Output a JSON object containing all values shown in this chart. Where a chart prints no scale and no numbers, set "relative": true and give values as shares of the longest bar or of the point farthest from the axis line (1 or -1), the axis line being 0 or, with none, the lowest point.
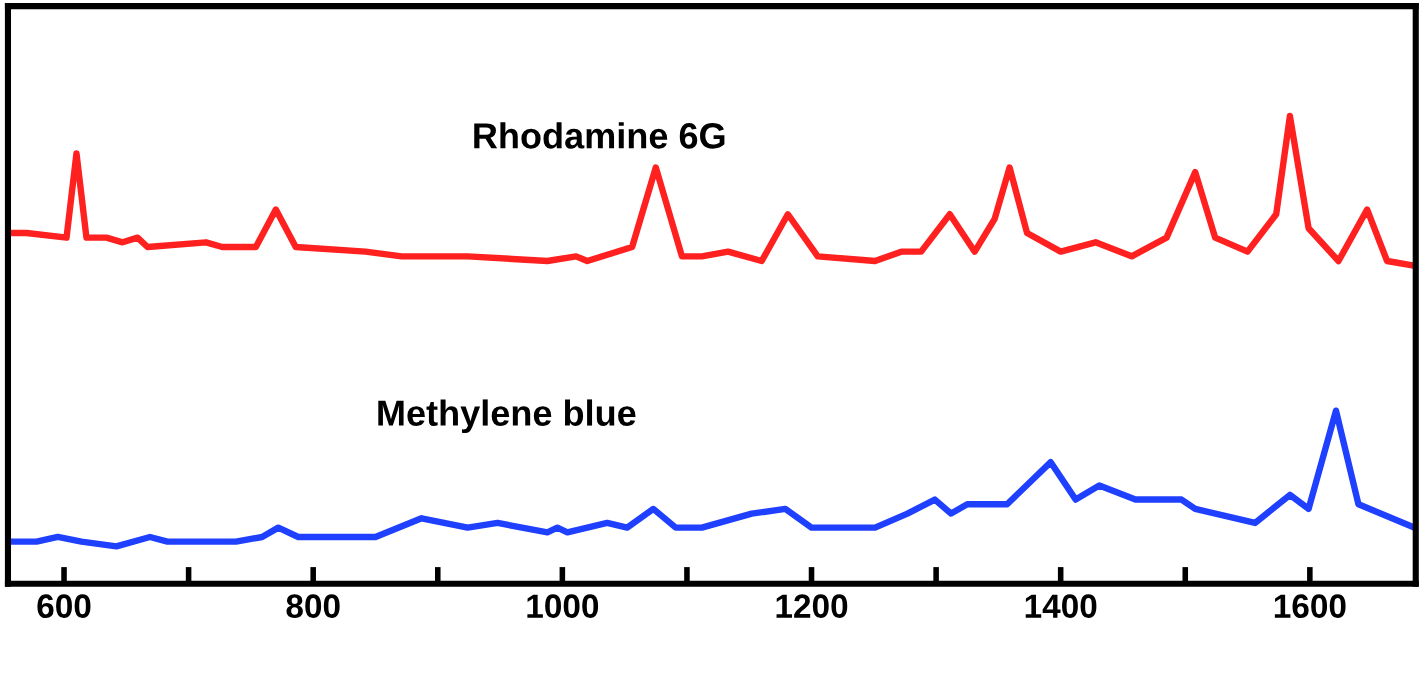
{
  "chart_data": {
    "type": "line",
    "relative": true,
    "grid": false,
    "legend": false,
    "marker": "none",
    "line_style": "solid",
    "tick_labels": "x",
    "xlim": [
      555,
      1685
    ],
    "xticks": [
      600,
      {
        "value": 700,
        "label": null
      },
      800,
      {
        "value": 900,
        "label": null
      },
      1000,
      {
        "value": 1100,
        "label": null
      },
      1200,
      {
        "value": 1300,
        "label": null
      },
      1400,
      {
        "value": 1500,
        "label": null
      },
      1600
    ],
    "series": [
      {
        "name": "Rhodamine 6G",
        "color": "#ff2020",
        "x": [
          557,
          570,
          602,
          610,
          618,
          634,
          647,
          659,
          667,
          714,
          727,
          754,
          770,
          786,
          842,
          871,
          924,
          988,
          1011,
          1020,
          1056,
          1075,
          1096,
          1112,
          1133,
          1160,
          1181,
          1205,
          1251,
          1272,
          1288,
          1311,
          1331,
          1347,
          1359,
          1373,
          1400,
          1428,
          1457,
          1485,
          1508,
          1524,
          1550,
          1573,
          1584,
          1599,
          1623,
          1646,
          1662,
          1684
        ],
        "values": [
          0.75,
          0.75,
          0.74,
          0.92,
          0.74,
          0.74,
          0.73,
          0.74,
          0.72,
          0.73,
          0.72,
          0.72,
          0.8,
          0.72,
          0.71,
          0.7,
          0.7,
          0.69,
          0.7,
          0.69,
          0.72,
          0.89,
          0.7,
          0.7,
          0.71,
          0.69,
          0.79,
          0.7,
          0.69,
          0.71,
          0.71,
          0.79,
          0.71,
          0.78,
          0.89,
          0.75,
          0.71,
          0.73,
          0.7,
          0.74,
          0.88,
          0.74,
          0.71,
          0.79,
          1,
          0.76,
          0.69,
          0.8,
          0.69,
          0.68
        ]
      },
      {
        "name": "Methylene blue",
        "color": "#2040ff",
        "x": [
          557,
          578,
          595,
          614,
          642,
          669,
          683,
          738,
          759,
          772,
          788,
          828,
          850,
          887,
          924,
          948,
          988,
          996,
          1004,
          1036,
          1052,
          1073,
          1091,
          1112,
          1152,
          1179,
          1200,
          1251,
          1277,
          1299,
          1312,
          1325,
          1357,
          1392,
          1412,
          1431,
          1460,
          1497,
          1508,
          1556,
          1584,
          1599,
          1621,
          1639,
          1684
        ],
        "values": [
          0.09,
          0.09,
          0.1,
          0.09,
          0.08,
          0.1,
          0.09,
          0.09,
          0.1,
          0.12,
          0.1,
          0.1,
          0.1,
          0.14,
          0.12,
          0.13,
          0.11,
          0.12,
          0.11,
          0.13,
          0.12,
          0.16,
          0.12,
          0.12,
          0.15,
          0.16,
          0.12,
          0.12,
          0.15,
          0.18,
          0.15,
          0.17,
          0.17,
          0.26,
          0.18,
          0.21,
          0.18,
          0.18,
          0.16,
          0.13,
          0.19,
          0.16,
          0.37,
          0.17,
          0.12
        ]
      }
    ]
  }
}
